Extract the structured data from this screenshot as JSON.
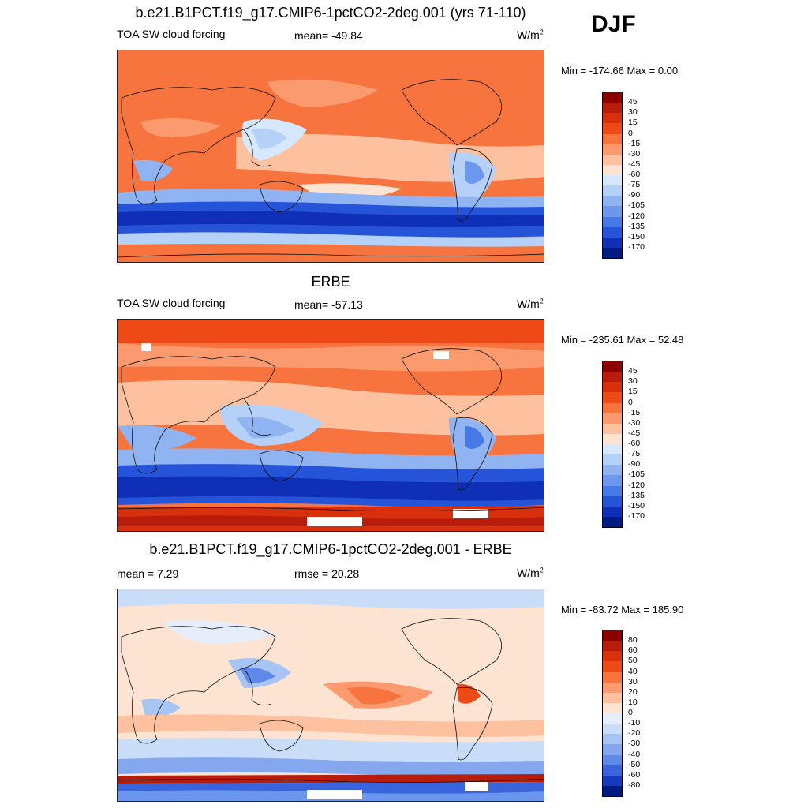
{
  "season": "DJF",
  "panels": [
    {
      "title": "b.e21.B1PCT.f19_g17.CMIP6-1pctCO2-2deg.001 (yrs 71-110)",
      "left_label": "TOA SW cloud forcing",
      "center_label": "mean= -49.84",
      "units": "W/m",
      "units_sup": "2",
      "minmax": "Min = -174.66 Max =   0.00",
      "levels": [
        "45",
        "30",
        "15",
        "0",
        "-15",
        "-30",
        "-45",
        "-60",
        "-75",
        "-90",
        "-105",
        "-120",
        "-135",
        "-150",
        "-170"
      ],
      "colors": [
        "#8b0000",
        "#b81c0a",
        "#d8300d",
        "#ee4a17",
        "#f7743f",
        "#fb9a6e",
        "#fdc1a0",
        "#fde4d2",
        "#d6e8fb",
        "#b6d1f7",
        "#8fb4f1",
        "#6c97ec",
        "#4678e6",
        "#2554d8",
        "#0e2fb6",
        "#001a83"
      ]
    },
    {
      "title": "ERBE",
      "left_label": "TOA SW cloud forcing",
      "center_label": "mean= -57.13",
      "units": "W/m",
      "units_sup": "2",
      "minmax": "Min = -235.61 Max =  52.48",
      "levels": [
        "45",
        "30",
        "15",
        "0",
        "-15",
        "-30",
        "-45",
        "-60",
        "-75",
        "-90",
        "-105",
        "-120",
        "-135",
        "-150",
        "-170"
      ],
      "colors": [
        "#8b0000",
        "#b81c0a",
        "#d8300d",
        "#ee4a17",
        "#f7743f",
        "#fb9a6e",
        "#fdc1a0",
        "#fde4d2",
        "#d6e8fb",
        "#b6d1f7",
        "#8fb4f1",
        "#6c97ec",
        "#4678e6",
        "#2554d8",
        "#0e2fb6",
        "#001a83"
      ]
    },
    {
      "title": "b.e21.B1PCT.f19_g17.CMIP6-1pctCO2-2deg.001 - ERBE",
      "left_label": "mean =   7.29",
      "center_label": "rmse =  20.28",
      "units": "W/m",
      "units_sup": "2",
      "minmax": "Min = -83.72 Max = 185.90",
      "levels": [
        "80",
        "60",
        "50",
        "40",
        "30",
        "20",
        "10",
        "0",
        "-10",
        "-20",
        "-30",
        "-40",
        "-50",
        "-60",
        "-80"
      ],
      "colors": [
        "#8b0000",
        "#b81c0a",
        "#d8300d",
        "#ee4a17",
        "#f7743f",
        "#fb9a6e",
        "#fdc1a0",
        "#fde4d2",
        "#e6eefb",
        "#c9dcf8",
        "#a8c4f3",
        "#84a7ee",
        "#5f88e8",
        "#3a64dc",
        "#1838bd",
        "#001a83"
      ]
    }
  ]
}
